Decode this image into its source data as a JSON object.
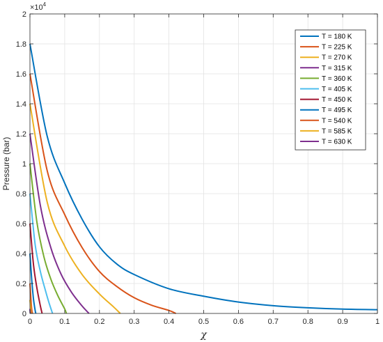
{
  "chart_data": {
    "type": "line",
    "title": "",
    "xlabel": "χ",
    "ylabel": "Pressure (bar)",
    "exponent_base": "×10",
    "exponent_power": "4",
    "xlim": [
      0,
      1
    ],
    "ylim": [
      0,
      20000
    ],
    "xticks": [
      0,
      0.1,
      0.2,
      0.3,
      0.4,
      0.5,
      0.6,
      0.7,
      0.8,
      0.9,
      1
    ],
    "xtick_labels": [
      "0",
      "0.1",
      "0.2",
      "0.3",
      "0.4",
      "0.5",
      "0.6",
      "0.7",
      "0.8",
      "0.9",
      "1"
    ],
    "yticks": [
      0,
      2000,
      4000,
      6000,
      8000,
      10000,
      12000,
      14000,
      16000,
      18000,
      20000
    ],
    "ytick_labels": [
      "0",
      "0.2",
      "0.4",
      "0.6",
      "0.8",
      "1",
      "1.2",
      "1.4",
      "1.6",
      "1.8",
      "2"
    ],
    "grid": true,
    "legend_position": "top-right",
    "series": [
      {
        "name": "T = 180 K",
        "color": "#0072BD",
        "points": [
          [
            0,
            18000
          ],
          [
            0.05,
            11800
          ],
          [
            0.1,
            8700
          ],
          [
            0.15,
            6300
          ],
          [
            0.2,
            4450
          ],
          [
            0.25,
            3300
          ],
          [
            0.3,
            2600
          ],
          [
            0.4,
            1650
          ],
          [
            0.5,
            1150
          ],
          [
            0.6,
            760
          ],
          [
            0.7,
            520
          ],
          [
            0.8,
            380
          ],
          [
            0.9,
            290
          ],
          [
            1.0,
            250
          ]
        ]
      },
      {
        "name": "T = 225 K",
        "color": "#D95319",
        "points": [
          [
            0,
            16000
          ],
          [
            0.05,
            9500
          ],
          [
            0.1,
            6600
          ],
          [
            0.15,
            4400
          ],
          [
            0.2,
            2800
          ],
          [
            0.25,
            1800
          ],
          [
            0.3,
            1050
          ],
          [
            0.35,
            550
          ],
          [
            0.4,
            200
          ],
          [
            0.42,
            0
          ]
        ]
      },
      {
        "name": "T = 270 K",
        "color": "#EDB120",
        "points": [
          [
            0,
            14000
          ],
          [
            0.05,
            7400
          ],
          [
            0.1,
            4500
          ],
          [
            0.15,
            2600
          ],
          [
            0.2,
            1300
          ],
          [
            0.24,
            450
          ],
          [
            0.26,
            0
          ]
        ]
      },
      {
        "name": "T = 315 K",
        "color": "#7E2F8E",
        "points": [
          [
            0,
            12000
          ],
          [
            0.03,
            7200
          ],
          [
            0.06,
            4400
          ],
          [
            0.09,
            2600
          ],
          [
            0.12,
            1400
          ],
          [
            0.15,
            500
          ],
          [
            0.17,
            0
          ]
        ]
      },
      {
        "name": "T = 360 K",
        "color": "#77AC30",
        "points": [
          [
            0,
            10000
          ],
          [
            0.02,
            6100
          ],
          [
            0.04,
            3800
          ],
          [
            0.06,
            2300
          ],
          [
            0.08,
            1200
          ],
          [
            0.1,
            300
          ],
          [
            0.105,
            0
          ]
        ]
      },
      {
        "name": "T = 405 K",
        "color": "#4DBEEE",
        "points": [
          [
            0,
            8000
          ],
          [
            0.015,
            4600
          ],
          [
            0.03,
            2800
          ],
          [
            0.045,
            1500
          ],
          [
            0.055,
            700
          ],
          [
            0.065,
            0
          ]
        ]
      },
      {
        "name": "T = 450 K",
        "color": "#A2142F",
        "points": [
          [
            0,
            6000
          ],
          [
            0.01,
            3300
          ],
          [
            0.02,
            1700
          ],
          [
            0.03,
            500
          ],
          [
            0.035,
            0
          ]
        ]
      },
      {
        "name": "T = 495 K",
        "color": "#0072BD",
        "points": [
          [
            0,
            4000
          ],
          [
            0.005,
            2300
          ],
          [
            0.01,
            1000
          ],
          [
            0.015,
            200
          ],
          [
            0.017,
            0
          ]
        ]
      },
      {
        "name": "T = 540 K",
        "color": "#D95319",
        "points": [
          [
            0,
            2000
          ],
          [
            0.003,
            900
          ],
          [
            0.005,
            300
          ],
          [
            0.007,
            0
          ]
        ]
      },
      {
        "name": "T = 585 K",
        "color": "#EDB120",
        "points": [
          [
            0,
            900
          ],
          [
            0.002,
            400
          ],
          [
            0.003,
            0
          ]
        ]
      },
      {
        "name": "T = 630 K",
        "color": "#7E2F8E",
        "points": [
          [
            0,
            300
          ],
          [
            0.001,
            0
          ]
        ]
      }
    ]
  }
}
